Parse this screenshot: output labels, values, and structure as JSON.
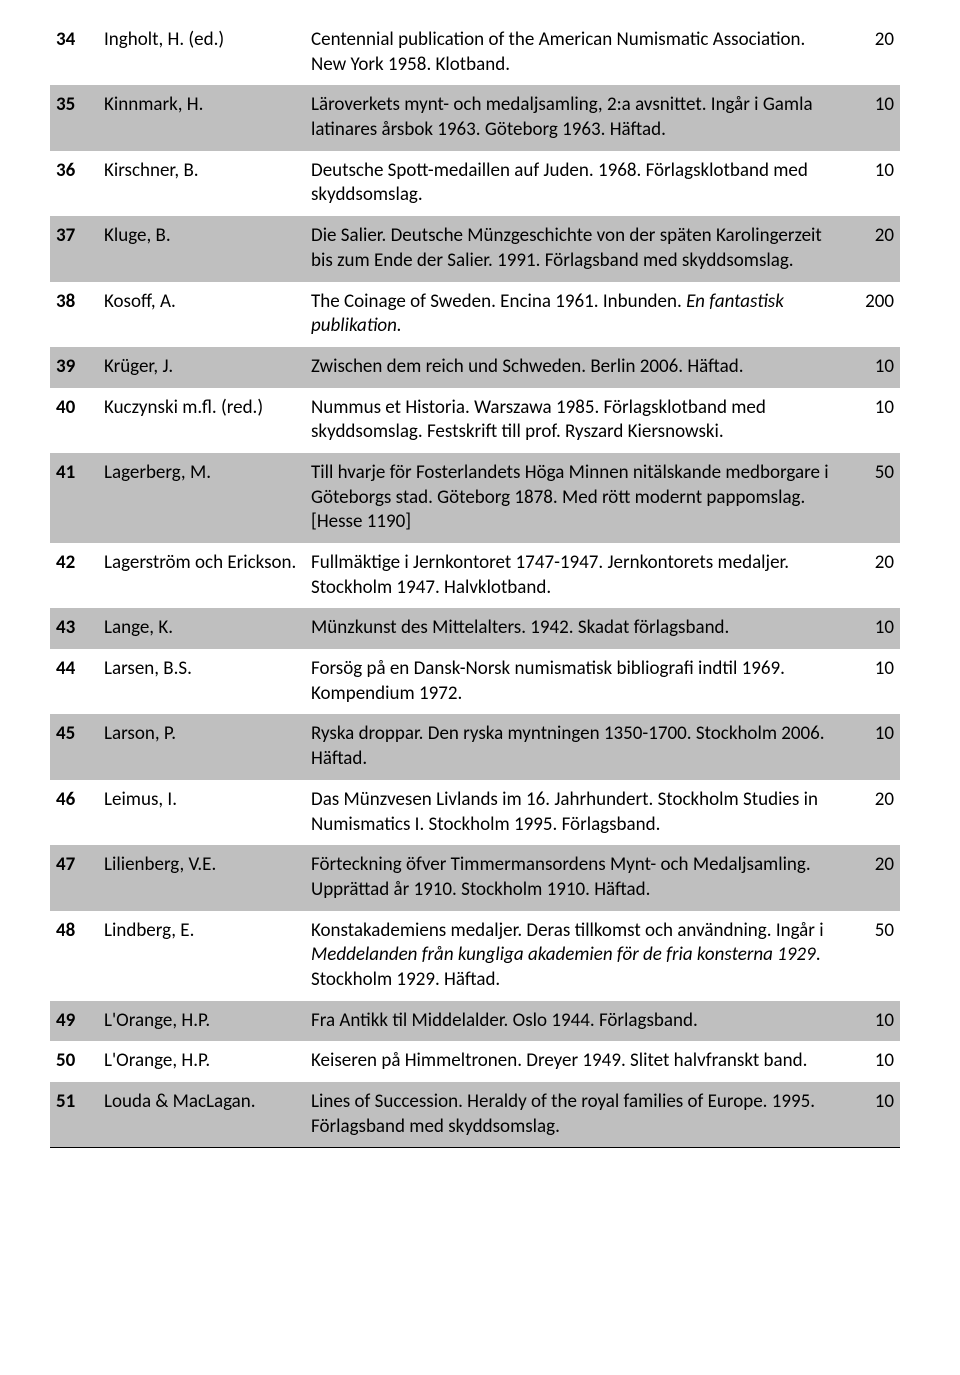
{
  "rows": [
    {
      "num": "34",
      "author": "Ingholt, H. (ed.)",
      "desc": "Centennial publication of the American Numismatic Association. New York 1958. Klotband.",
      "price": "20",
      "shaded": false
    },
    {
      "num": "35",
      "author": "Kinnmark, H.",
      "desc": "Läroverkets mynt- och medaljsamling, 2:a avsnittet. Ingår i Gamla latinares årsbok 1963. Göteborg 1963. Häftad.",
      "price": "10",
      "shaded": true
    },
    {
      "num": "36",
      "author": "Kirschner, B.",
      "desc": "Deutsche Spott-medaillen auf Juden. 1968. Förlagsklotband med skyddsomslag.",
      "price": "10",
      "shaded": false
    },
    {
      "num": "37",
      "author": "Kluge, B.",
      "desc": "Die Salier. Deutsche Münzgeschichte von der späten Karolingerzeit bis zum Ende der Salier. 1991. Förlagsband med skyddsomslag.",
      "price": "20",
      "shaded": true
    },
    {
      "num": "38",
      "author": "Kosoff, A.",
      "desc_parts": [
        {
          "text": "The Coinage of Sweden. Encina 1961. Inbunden. ",
          "italic": false
        },
        {
          "text": "En fantastisk publikation.",
          "italic": true
        }
      ],
      "price": "200",
      "shaded": false
    },
    {
      "num": "39",
      "author": "Krüger, J.",
      "desc": "Zwischen dem reich und Schweden. Berlin 2006. Häftad.",
      "price": "10",
      "shaded": true
    },
    {
      "num": "40",
      "author": "Kuczynski m.fl. (red.)",
      "desc": "Nummus et Historia. Warszawa 1985. Förlagsklotband med skyddsomslag. Festskrift till prof. Ryszard Kiersnowski.",
      "price": "10",
      "shaded": false
    },
    {
      "num": "41",
      "author": "Lagerberg, M.",
      "desc": "Till hvarje för Fosterlandets Höga Minnen nitälskande medborgare i Göteborgs stad. Göteborg 1878. Med rött modernt pappomslag. [Hesse 1190]",
      "price": "50",
      "shaded": true
    },
    {
      "num": "42",
      "author": "Lagerström och Erickson.",
      "desc": "Fullmäktige i Jernkontoret 1747-1947. Jernkontorets medaljer. Stockholm 1947. Halvklotband.",
      "price": "20",
      "shaded": false
    },
    {
      "num": "43",
      "author": "Lange, K.",
      "desc": "Münzkunst des Mittelalters. 1942. Skadat förlagsband.",
      "price": "10",
      "shaded": true
    },
    {
      "num": "44",
      "author": "Larsen, B.S.",
      "desc": "Forsög på en Dansk-Norsk numismatisk bibliografi indtil 1969. Kompendium 1972.",
      "price": "10",
      "shaded": false
    },
    {
      "num": "45",
      "author": "Larson, P.",
      "desc": "Ryska droppar. Den ryska myntningen 1350-1700. Stockholm 2006. Häftad.",
      "price": "10",
      "shaded": true
    },
    {
      "num": "46",
      "author": "Leimus, I.",
      "desc": "Das Münzvesen Livlands im 16. Jahrhundert. Stockholm Studies in Numismatics I. Stockholm 1995. Förlagsband.",
      "price": "20",
      "shaded": false
    },
    {
      "num": "47",
      "author": "Lilienberg, V.E.",
      "desc": "Förteckning öfver Timmermansordens Mynt- och Medaljsamling. Upprättad år 1910. Stockholm 1910. Häftad.",
      "price": "20",
      "shaded": true
    },
    {
      "num": "48",
      "author": "Lindberg, E.",
      "desc_parts": [
        {
          "text": "Konstakademiens medaljer. Deras tillkomst och användning. Ingår i ",
          "italic": false
        },
        {
          "text": "Meddelanden från kungliga akademien för de fria konsterna 1929",
          "italic": true
        },
        {
          "text": ". Stockholm 1929. Häftad.",
          "italic": false
        }
      ],
      "price": "50",
      "shaded": false
    },
    {
      "num": "49",
      "author": "L'Orange, H.P.",
      "desc": "Fra Antikk til Middelalder. Oslo 1944. Förlagsband.",
      "price": "10",
      "shaded": true
    },
    {
      "num": "50",
      "author": "L'Orange, H.P.",
      "desc": "Keiseren på Himmeltronen. Dreyer 1949. Slitet halvfranskt band.",
      "price": "10",
      "shaded": false
    },
    {
      "num": "51",
      "author": "Louda & MacLagan.",
      "desc": "Lines of Succession. Heraldy of the royal families of Europe. 1995. Förlagsband med skyddsomslag.",
      "price": "10",
      "shaded": true,
      "bottom_border": true
    }
  ]
}
